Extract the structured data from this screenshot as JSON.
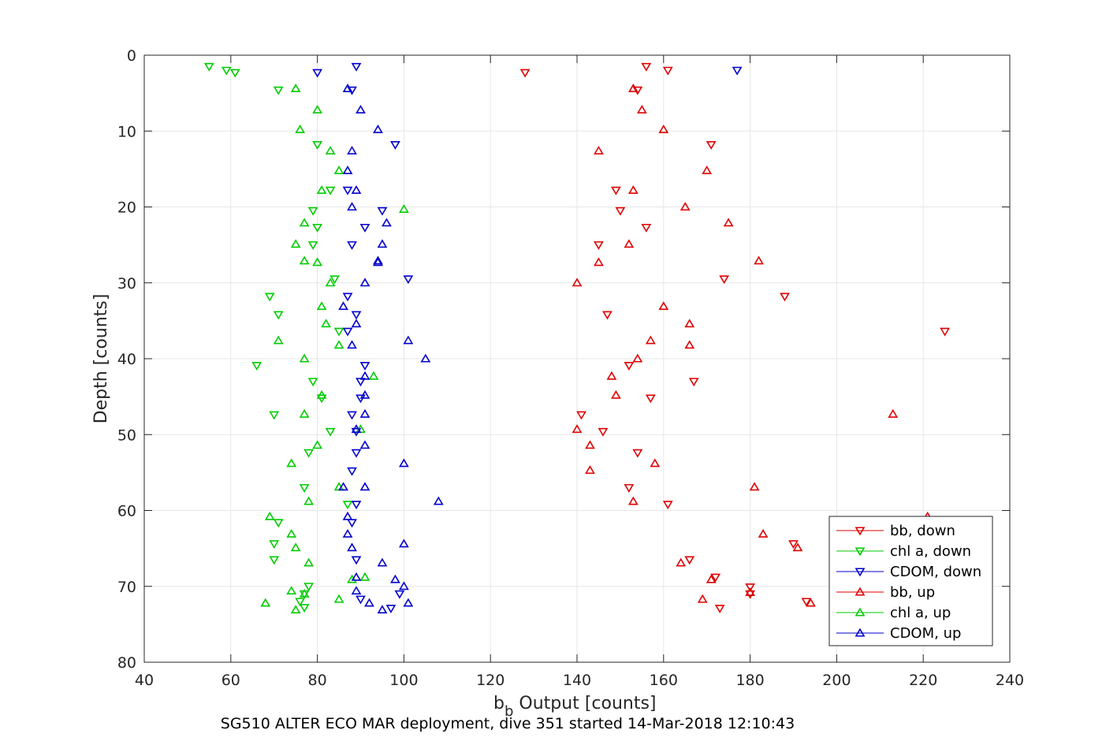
{
  "chart_data": {
    "type": "scatter",
    "caption": "SG510 ALTER ECO MAR deployment, dive 351 started 14-Mar-2018 12:10:43",
    "xlabel_main": "b",
    "xlabel_sub": "b",
    "xlabel_rest": " Output [counts]",
    "ylabel": "Depth [counts]",
    "xlim": [
      40,
      240
    ],
    "ylim": [
      0,
      80
    ],
    "y_reversed": true,
    "grid": true,
    "legend_position": "bottom-right",
    "x_ticks": [
      "40",
      "60",
      "80",
      "100",
      "120",
      "140",
      "160",
      "180",
      "200",
      "220",
      "240"
    ],
    "y_ticks": [
      "0",
      "10",
      "20",
      "30",
      "40",
      "50",
      "60",
      "70",
      "80"
    ],
    "series": [
      {
        "name": "bb, down",
        "marker": "triangle-down",
        "color": "#e00000",
        "points": [
          [
            156,
            1.5
          ],
          [
            161,
            2.0
          ],
          [
            128,
            2.3
          ],
          [
            154,
            4.6
          ],
          [
            171,
            11.8
          ],
          [
            149,
            17.8
          ],
          [
            150,
            20.5
          ],
          [
            156,
            22.7
          ],
          [
            145,
            25
          ],
          [
            174,
            29.5
          ],
          [
            188,
            31.8
          ],
          [
            147,
            34.2
          ],
          [
            225,
            36.4
          ],
          [
            152,
            40.9
          ],
          [
            167,
            43
          ],
          [
            157,
            45.2
          ],
          [
            141,
            47.4
          ],
          [
            146,
            49.6
          ],
          [
            154,
            52.4
          ],
          [
            152,
            57
          ],
          [
            161,
            59.2
          ],
          [
            190,
            64.4
          ],
          [
            166,
            66.5
          ],
          [
            172,
            68.8
          ],
          [
            180,
            70.1
          ],
          [
            180,
            71
          ],
          [
            193,
            72
          ],
          [
            173,
            72.9
          ]
        ]
      },
      {
        "name": "chl a, down",
        "marker": "triangle-down",
        "color": "#00cc00",
        "points": [
          [
            55,
            1.5
          ],
          [
            59,
            2.0
          ],
          [
            61,
            2.3
          ],
          [
            71,
            4.6
          ],
          [
            80,
            11.8
          ],
          [
            83,
            17.8
          ],
          [
            79,
            20.5
          ],
          [
            80,
            22.7
          ],
          [
            79,
            25
          ],
          [
            84,
            29.5
          ],
          [
            69,
            31.8
          ],
          [
            71,
            34.2
          ],
          [
            85,
            36.4
          ],
          [
            66,
            40.9
          ],
          [
            79,
            43
          ],
          [
            81,
            45.2
          ],
          [
            70,
            47.4
          ],
          [
            83,
            49.6
          ],
          [
            78,
            52.4
          ],
          [
            77,
            57
          ],
          [
            87,
            59.2
          ],
          [
            71,
            61.6
          ],
          [
            70,
            64.4
          ],
          [
            70,
            66.5
          ],
          [
            78,
            70
          ],
          [
            77,
            71
          ],
          [
            76,
            72
          ],
          [
            77,
            72.8
          ]
        ]
      },
      {
        "name": "CDOM, down",
        "marker": "triangle-down",
        "color": "#0000cc",
        "points": [
          [
            177,
            2.0
          ],
          [
            89,
            1.5
          ],
          [
            80,
            2.3
          ],
          [
            88,
            4.6
          ],
          [
            98,
            11.8
          ],
          [
            87,
            17.8
          ],
          [
            95,
            20.5
          ],
          [
            91,
            22.7
          ],
          [
            88,
            25
          ],
          [
            101,
            29.5
          ],
          [
            87,
            31.8
          ],
          [
            89,
            34.2
          ],
          [
            87,
            36.4
          ],
          [
            91,
            40.9
          ],
          [
            90,
            43
          ],
          [
            90,
            45.2
          ],
          [
            88,
            47.4
          ],
          [
            89,
            49.6
          ],
          [
            89,
            52.4
          ],
          [
            88,
            54.8
          ],
          [
            89,
            59.2
          ],
          [
            88,
            61.6
          ],
          [
            89,
            66.5
          ],
          [
            90,
            71.7
          ],
          [
            99,
            71
          ],
          [
            97,
            72.9
          ]
        ]
      },
      {
        "name": "bb, up",
        "marker": "triangle-up",
        "color": "#e00000",
        "points": [
          [
            153,
            4.4
          ],
          [
            155,
            7.2
          ],
          [
            160,
            9.8
          ],
          [
            145,
            12.6
          ],
          [
            170,
            15.2
          ],
          [
            153,
            17.8
          ],
          [
            165,
            20
          ],
          [
            175,
            22.1
          ],
          [
            152,
            24.9
          ],
          [
            182,
            27.1
          ],
          [
            145,
            27.3
          ],
          [
            140,
            30
          ],
          [
            160,
            33.1
          ],
          [
            166,
            35.4
          ],
          [
            157,
            37.6
          ],
          [
            166,
            38.2
          ],
          [
            154,
            40
          ],
          [
            148,
            42.3
          ],
          [
            149,
            44.8
          ],
          [
            213,
            47.3
          ],
          [
            140,
            49.3
          ],
          [
            143,
            51.4
          ],
          [
            158,
            53.8
          ],
          [
            143,
            54.7
          ],
          [
            181,
            56.9
          ],
          [
            153,
            58.8
          ],
          [
            221,
            60.8
          ],
          [
            183,
            63.1
          ],
          [
            191,
            64.9
          ],
          [
            164,
            66.9
          ],
          [
            171,
            69.1
          ],
          [
            180,
            70.8
          ],
          [
            169,
            71.7
          ],
          [
            194,
            72.2
          ]
        ]
      },
      {
        "name": "chl a, up",
        "marker": "triangle-up",
        "color": "#00cc00",
        "points": [
          [
            75,
            4.4
          ],
          [
            80,
            7.2
          ],
          [
            76,
            9.8
          ],
          [
            83,
            12.6
          ],
          [
            85,
            15.2
          ],
          [
            81,
            17.8
          ],
          [
            100,
            20.3
          ],
          [
            77,
            22.1
          ],
          [
            75,
            24.9
          ],
          [
            77,
            27.1
          ],
          [
            80,
            27.3
          ],
          [
            83,
            30
          ],
          [
            81,
            33.1
          ],
          [
            82,
            35.4
          ],
          [
            71,
            37.6
          ],
          [
            85,
            38.2
          ],
          [
            77,
            40
          ],
          [
            93,
            42.3
          ],
          [
            81,
            44.8
          ],
          [
            77,
            47.3
          ],
          [
            90,
            49.3
          ],
          [
            80,
            51.4
          ],
          [
            74,
            53.8
          ],
          [
            85,
            56.9
          ],
          [
            78,
            58.8
          ],
          [
            69,
            60.8
          ],
          [
            74,
            63.1
          ],
          [
            75,
            64.9
          ],
          [
            78,
            66.9
          ],
          [
            91,
            68.8
          ],
          [
            88,
            69.1
          ],
          [
            74,
            70.6
          ],
          [
            77,
            71
          ],
          [
            85,
            71.7
          ],
          [
            68,
            72.2
          ],
          [
            75,
            73.1
          ]
        ]
      },
      {
        "name": "CDOM, up",
        "marker": "triangle-up",
        "color": "#0000cc",
        "points": [
          [
            87,
            4.4
          ],
          [
            90,
            7.2
          ],
          [
            94,
            9.8
          ],
          [
            88,
            12.6
          ],
          [
            87,
            15.2
          ],
          [
            89,
            17.8
          ],
          [
            88,
            20
          ],
          [
            96,
            22.1
          ],
          [
            95,
            24.9
          ],
          [
            94,
            27.1
          ],
          [
            94,
            27.3
          ],
          [
            91,
            30
          ],
          [
            86,
            33.1
          ],
          [
            89,
            35.4
          ],
          [
            101,
            37.6
          ],
          [
            88,
            38.2
          ],
          [
            105,
            40
          ],
          [
            91,
            42.3
          ],
          [
            91,
            44.8
          ],
          [
            91,
            47.3
          ],
          [
            89,
            49.3
          ],
          [
            91,
            51.4
          ],
          [
            100,
            53.8
          ],
          [
            86,
            56.9
          ],
          [
            91,
            56.9
          ],
          [
            108,
            58.8
          ],
          [
            87,
            60.8
          ],
          [
            87,
            63.1
          ],
          [
            100,
            64.4
          ],
          [
            88,
            64.9
          ],
          [
            95,
            66.9
          ],
          [
            89,
            68.8
          ],
          [
            98,
            69.1
          ],
          [
            100,
            70
          ],
          [
            89,
            70.6
          ],
          [
            101,
            72.2
          ],
          [
            92,
            72.2
          ],
          [
            95,
            73.1
          ]
        ]
      }
    ]
  }
}
